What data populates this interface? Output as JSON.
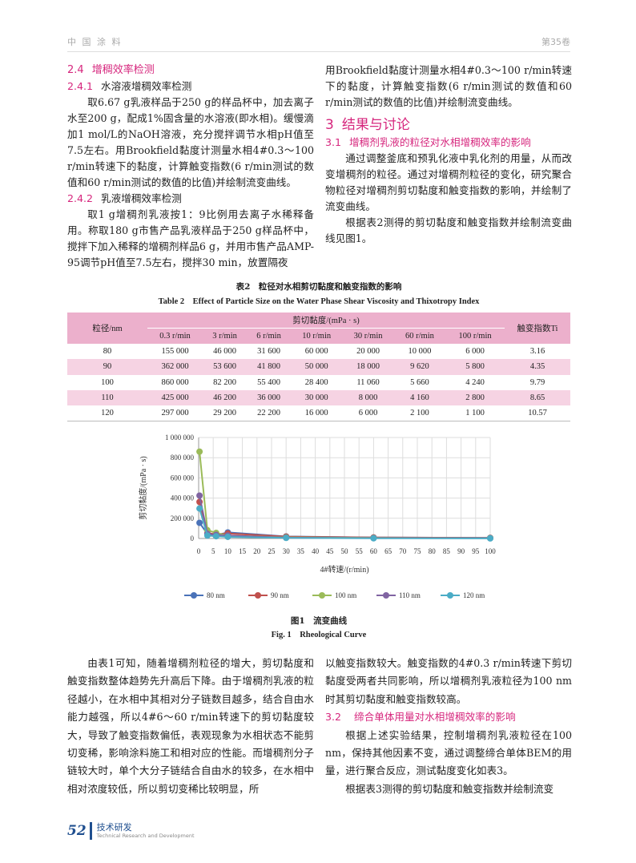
{
  "header": {
    "journal": "中 国 涂 料",
    "volume": "第35卷"
  },
  "left_top": {
    "s24": {
      "num": "2.4",
      "title": "增稠效率检测"
    },
    "s241": {
      "num": "2.4.1",
      "title": "水溶液增稠效率检测"
    },
    "p1": "取6.67 g乳液样品于250 g的样品杯中，加去离子水至200 g，配成1%固含量的水溶液(即水相)。缓慢滴加1 mol/L的NaOH溶液，充分搅拌调节水相pH值至7.5左右。用Brookfield黏度计测量水相4#0.3～100 r/min转速下的黏度，计算触变指数(6 r/min测试的数值和60 r/min测试的数值的比值)并绘制流变曲线。",
    "s242": {
      "num": "2.4.2",
      "title": "乳液增稠效率检测"
    },
    "p2": "取1 g增稠剂乳液按1：9比例用去离子水稀释备用。称取180 g市售产品乳液样品于250 g样品杯中，搅拌下加入稀释的增稠剂样品6 g，并用市售产品AMP-95调节pH值至7.5左右，搅拌30 min，放置隔夜"
  },
  "right_top": {
    "p0": "用Brookfield黏度计测量水相4#0.3～100 r/min转速下的黏度，计算触变指数(6 r/min测试的数值和60 r/min测试的数值的比值)并绘制流变曲线。",
    "s3": {
      "num": "3",
      "title": "结果与讨论"
    },
    "s31": {
      "num": "3.1",
      "title": "增稠剂乳液的粒径对水相增稠效率的影响"
    },
    "p1": "通过调整釜底和预乳化液中乳化剂的用量，从而改变增稠剂的粒径。通过对增稠剂粒径的变化，研究聚合物粒径对增稠剂剪切黏度和触变指数的影响，并绘制了流变曲线。",
    "p2": "根据表2测得的剪切黏度和触变指数并绘制流变曲线见图1。"
  },
  "table": {
    "caption_cn": "表2　粒径对水相剪切黏度和触变指数的影响",
    "caption_en": "Table 2　Effect of Particle Size on the Water Phase Shear Viscosity and Thixotropy Index",
    "col_size": "粒径/nm",
    "col_visc": "剪切黏度/(mPa · s)",
    "col_ti": "触变指数Ti",
    "speeds": [
      "0.3 r/min",
      "3 r/min",
      "6 r/min",
      "10 r/min",
      "30 r/min",
      "60 r/min",
      "100 r/min"
    ],
    "rows": [
      [
        "80",
        "155 000",
        "46 000",
        "31 600",
        "60 000",
        "20 000",
        "10 000",
        "6 000",
        "3.16"
      ],
      [
        "90",
        "362 000",
        "53 600",
        "41 800",
        "50 000",
        "18 000",
        "9 620",
        "5 800",
        "4.35"
      ],
      [
        "100",
        "860 000",
        "82 200",
        "55 400",
        "28 400",
        "11 060",
        "5 660",
        "4 240",
        "9.79"
      ],
      [
        "110",
        "425 000",
        "46 200",
        "36 000",
        "30 000",
        "8 000",
        "4 160",
        "2 800",
        "8.65"
      ],
      [
        "120",
        "297 000",
        "29 200",
        "22 200",
        "16 000",
        "6 000",
        "2 100",
        "1 100",
        "10.57"
      ]
    ]
  },
  "chart_data": {
    "type": "line",
    "ylabel": "剪切黏度/(mPa · s)",
    "xlabel": "4#转速/(r/min)",
    "xlim": [
      0,
      100
    ],
    "ylim": [
      0,
      1000000
    ],
    "xticks": [
      "0",
      "5",
      "10",
      "15",
      "20",
      "25",
      "30",
      "35",
      "40",
      "45",
      "50",
      "55",
      "60",
      "65",
      "70",
      "75",
      "80",
      "85",
      "90",
      "95",
      "100"
    ],
    "yticks": [
      "0",
      "200 000",
      "400 000",
      "600 000",
      "800 000",
      "1 000 000"
    ],
    "grid": true,
    "legend": "bottom",
    "x": [
      0.3,
      3,
      6,
      10,
      30,
      60,
      100
    ],
    "series": [
      {
        "name": "80 nm",
        "color": "#4a72b8",
        "values": [
          155000,
          46000,
          31600,
          60000,
          20000,
          10000,
          6000
        ]
      },
      {
        "name": "90 nm",
        "color": "#c0504d",
        "values": [
          362000,
          53600,
          41800,
          50000,
          18000,
          9620,
          5800
        ]
      },
      {
        "name": "100 nm",
        "color": "#9bbb59",
        "values": [
          860000,
          82200,
          55400,
          28400,
          11060,
          5660,
          4240
        ]
      },
      {
        "name": "110 nm",
        "color": "#8064a2",
        "values": [
          425000,
          46200,
          36000,
          30000,
          8000,
          4160,
          2800
        ]
      },
      {
        "name": "120 nm",
        "color": "#4bacc6",
        "values": [
          297000,
          29200,
          22200,
          16000,
          6000,
          2100,
          1100
        ]
      }
    ]
  },
  "figure": {
    "caption_cn": "图1　流变曲线",
    "caption_en": "Fig. 1　Rheological Curve"
  },
  "left_bottom": {
    "p1": "由表1可知，随着增稠剂粒径的增大，剪切黏度和触变指数整体趋势先升高后下降。由于增稠剂乳液的粒径越小，在水相中其相对分子链数目越多，结合自由水能力越强，所以4#6～60 r/min转速下的剪切黏度较大，导致了触变指数偏低，表观现象为水相状态不能剪切变稀，影响涂料施工和相对应的性能。而增稠剂分子链较大时，单个大分子链结合自由水的较多，在水相中相对浓度较低，所以剪切变稀比较明显，所"
  },
  "right_bottom": {
    "p0": "以触变指数较大。触变指数的4#0.3 r/min转速下剪切黏度受两者共同影响，所以增稠剂乳液粒径为100 nm时其剪切黏度和触变指数较高。",
    "s32": {
      "num": "3.2",
      "title": "缔合单体用量对水相增稠效率的影响"
    },
    "p1": "根据上述实验结果，控制增稠剂乳液粒径在100 nm，保持其他因素不变，通过调整缔合单体BEM的用量，进行聚合反应，测试黏度变化如表3。",
    "p2": "根据表3测得的剪切黏度和触变指数并绘制流变"
  },
  "footer": {
    "page": "52",
    "section_cn": "技术研发",
    "section_en": "Technical Research and Development"
  }
}
